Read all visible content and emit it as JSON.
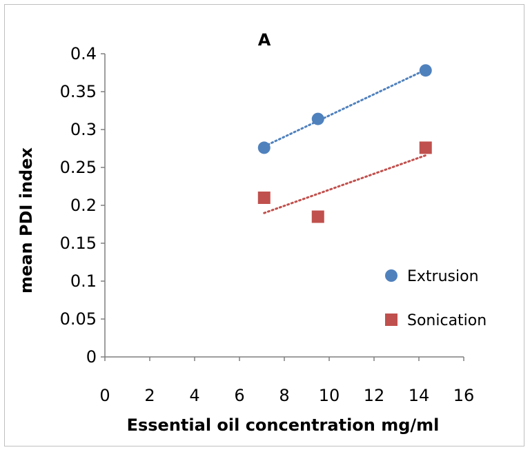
{
  "chart_data": {
    "type": "scatter",
    "title": "A",
    "xlabel": "Essential oil concentration mg/ml",
    "ylabel": "mean PDI index",
    "xlim": [
      0,
      16
    ],
    "ylim": [
      0,
      0.4
    ],
    "x_ticks": [
      "0",
      "2",
      "4",
      "6",
      "8",
      "10",
      "12",
      "14",
      "16"
    ],
    "y_ticks": [
      "0",
      "0.05",
      "0.1",
      "0.15",
      "0.2",
      "0.25",
      "0.3",
      "0.35",
      "0.4"
    ],
    "grid": false,
    "legend_position": "right",
    "series": [
      {
        "name": "Extrusion",
        "marker": "circle",
        "color": "#4f81bd",
        "trendline": "linear",
        "points": [
          {
            "x": 7.1,
            "y": 0.276
          },
          {
            "x": 9.5,
            "y": 0.314
          },
          {
            "x": 14.3,
            "y": 0.378
          }
        ]
      },
      {
        "name": "Sonication",
        "marker": "square",
        "color": "#c0504d",
        "trendline": "linear",
        "points": [
          {
            "x": 7.1,
            "y": 0.21
          },
          {
            "x": 9.5,
            "y": 0.185
          },
          {
            "x": 14.3,
            "y": 0.276
          }
        ]
      }
    ]
  }
}
